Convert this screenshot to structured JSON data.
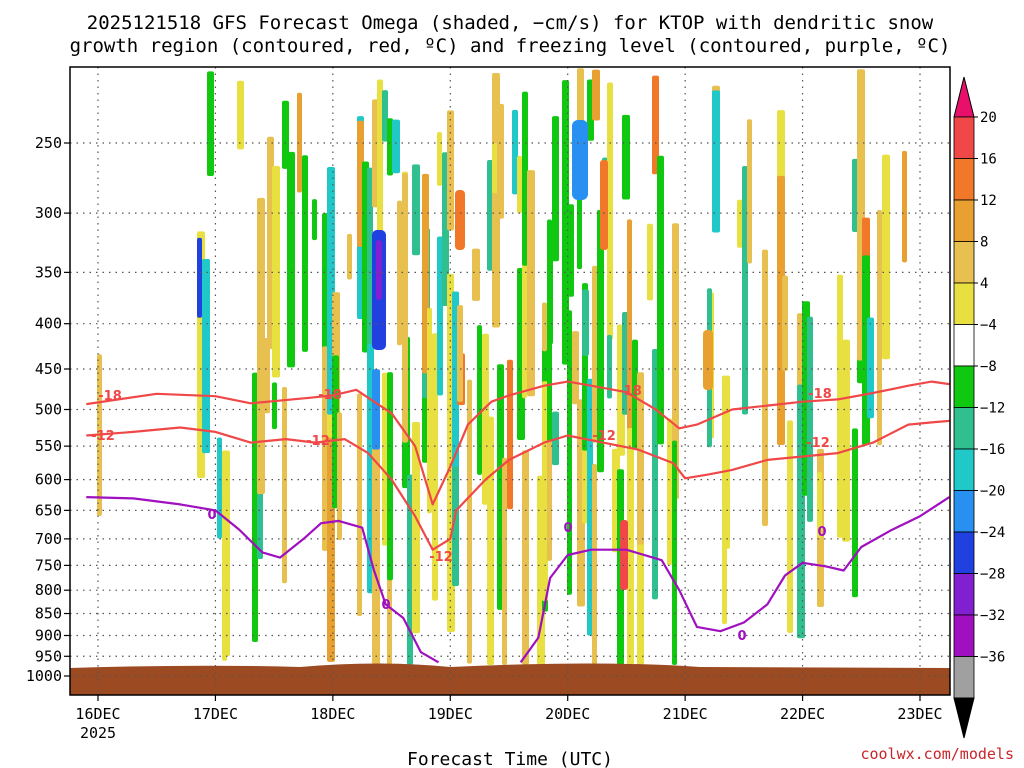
{
  "chart_data": {
    "type": "heatmap",
    "title_line1": "2025121518 GFS Forecast Omega (shaded, −cm/s) for KTOP with dendritic snow",
    "title_line2": "growth region (contoured, red, ºC) and freezing level (contoured, purple, ºC)",
    "xlabel": "Forecast Time (UTC)",
    "x_tick_labels": [
      "16DEC",
      "17DEC",
      "18DEC",
      "19DEC",
      "20DEC",
      "21DEC",
      "22DEC",
      "23DEC"
    ],
    "x_year_label": "2025",
    "x_range_days": [
      15.9,
      23.25
    ],
    "y_tick_labels": [
      "250",
      "300",
      "350",
      "400",
      "450",
      "500",
      "550",
      "600",
      "650",
      "700",
      "750",
      "800",
      "850",
      "900",
      "950",
      "1000"
    ],
    "y_levels_hPa": [
      250,
      300,
      350,
      400,
      450,
      500,
      550,
      600,
      650,
      700,
      750,
      800,
      850,
      900,
      950,
      1000
    ],
    "y_range_hPa": [
      200,
      1030
    ],
    "colorbar": {
      "tick_labels": [
        "20",
        "16",
        "12",
        "8",
        "4",
        "−4",
        "−8",
        "−12",
        "−16",
        "−20",
        "−24",
        "−28",
        "−32",
        "−36"
      ],
      "colors": [
        "#f04848",
        "#f07828",
        "#e8a030",
        "#e8c050",
        "#e8e040",
        "#ffffff",
        "#10c810",
        "#30c090",
        "#20c8c8",
        "#2890f0",
        "#2040e0",
        "#8020d0",
        "#a010c0",
        "#a0a0a0"
      ],
      "top_arrow_color": "#e8106a",
      "bottom_arrow_color": "#000000"
    },
    "series": [
      {
        "name": "-18 C isotherm",
        "color": "#f04848",
        "label": "-18",
        "points": [
          [
            15.9,
            493
          ],
          [
            16.5,
            480
          ],
          [
            17.0,
            483
          ],
          [
            17.3,
            492
          ],
          [
            17.8,
            485
          ],
          [
            18.0,
            482
          ],
          [
            18.2,
            475
          ],
          [
            18.5,
            505
          ],
          [
            18.7,
            550
          ],
          [
            18.85,
            640
          ],
          [
            19.0,
            580
          ],
          [
            19.15,
            520
          ],
          [
            19.35,
            490
          ],
          [
            19.5,
            482
          ],
          [
            19.8,
            470
          ],
          [
            20.0,
            465
          ],
          [
            20.2,
            470
          ],
          [
            20.5,
            478
          ],
          [
            20.75,
            500
          ],
          [
            20.95,
            525
          ],
          [
            21.1,
            520
          ],
          [
            21.4,
            500
          ],
          [
            21.7,
            495
          ],
          [
            22.0,
            490
          ],
          [
            22.3,
            487
          ],
          [
            22.6,
            479
          ],
          [
            22.9,
            470
          ],
          [
            23.1,
            465
          ],
          [
            23.25,
            468
          ]
        ]
      },
      {
        "name": "-12 C isotherm",
        "color": "#f04848",
        "label": "-12",
        "points": [
          [
            15.9,
            535
          ],
          [
            16.3,
            530
          ],
          [
            16.7,
            524
          ],
          [
            17.0,
            530
          ],
          [
            17.3,
            545
          ],
          [
            17.6,
            540
          ],
          [
            17.85,
            545
          ],
          [
            18.1,
            540
          ],
          [
            18.3,
            560
          ],
          [
            18.5,
            600
          ],
          [
            18.7,
            660
          ],
          [
            18.85,
            720
          ],
          [
            19.0,
            700
          ],
          [
            19.05,
            650
          ],
          [
            19.3,
            600
          ],
          [
            19.5,
            570
          ],
          [
            19.8,
            545
          ],
          [
            20.0,
            535
          ],
          [
            20.3,
            545
          ],
          [
            20.6,
            555
          ],
          [
            20.9,
            575
          ],
          [
            21.0,
            598
          ],
          [
            21.2,
            592
          ],
          [
            21.4,
            585
          ],
          [
            21.7,
            570
          ],
          [
            22.0,
            565
          ],
          [
            22.3,
            560
          ],
          [
            22.6,
            545
          ],
          [
            22.9,
            520
          ],
          [
            23.1,
            517
          ],
          [
            23.25,
            515
          ]
        ]
      },
      {
        "name": "0 C freezing level",
        "color": "#a010c0",
        "label": "0",
        "points": [
          [
            15.9,
            628
          ],
          [
            16.3,
            630
          ],
          [
            16.7,
            640
          ],
          [
            17.0,
            650
          ],
          [
            17.2,
            683
          ],
          [
            17.4,
            725
          ],
          [
            17.55,
            735
          ],
          [
            17.75,
            700
          ],
          [
            17.9,
            672
          ],
          [
            18.05,
            668
          ],
          [
            18.25,
            680
          ],
          [
            18.35,
            760
          ],
          [
            18.45,
            830
          ],
          [
            18.6,
            860
          ],
          [
            18.75,
            940
          ],
          [
            18.9,
            965
          ]
        ]
      },
      {
        "name": "0 C freezing level (east)",
        "color": "#a010c0",
        "label": "0",
        "points": [
          [
            19.6,
            965
          ],
          [
            19.75,
            905
          ],
          [
            19.85,
            775
          ],
          [
            20.0,
            730
          ],
          [
            20.2,
            720
          ],
          [
            20.5,
            720
          ],
          [
            20.8,
            740
          ],
          [
            20.95,
            800
          ],
          [
            21.1,
            880
          ],
          [
            21.3,
            890
          ],
          [
            21.5,
            870
          ],
          [
            21.7,
            830
          ],
          [
            21.85,
            770
          ],
          [
            22.0,
            745
          ],
          [
            22.2,
            752
          ],
          [
            22.35,
            760
          ],
          [
            22.5,
            715
          ],
          [
            22.75,
            685
          ],
          [
            23.0,
            660
          ],
          [
            23.25,
            628
          ]
        ]
      }
    ],
    "contour_labels": [
      "-18",
      "-18",
      "-18",
      "-18",
      "-12",
      "-12",
      "-12",
      "-12",
      "-12",
      "0",
      "0",
      "0",
      "0",
      "0"
    ],
    "omega_shading_note": "Vertical streaks of positive (yellow/orange/red) and negative (green/teal/blue/purple) omega throughout the troposphere from 17DEC to 23DEC"
  },
  "credit": "coolwx.com/models"
}
